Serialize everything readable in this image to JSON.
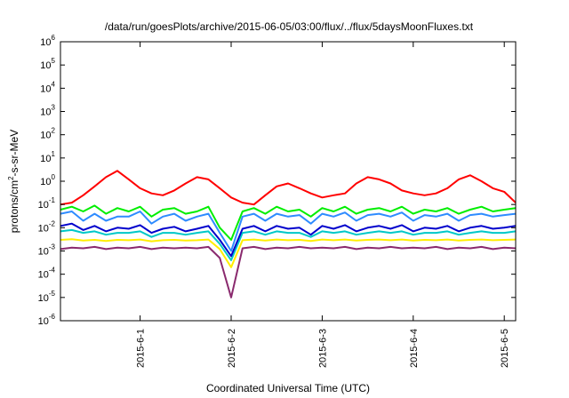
{
  "chart_data": {
    "type": "line",
    "title": "/data/run/goesPlots/archive/2015-06-05/03:00/flux/../flux/5daysMoonFluxes.txt",
    "xlabel": "Coordinated Universal Time (UTC)",
    "ylabel": {
      "prefix": "protons/cm",
      "sup": "2",
      "suffix": "-s-sr-MeV"
    },
    "y_scale": "log",
    "ylim": [
      1e-06,
      1000000
    ],
    "y_ticks": [
      {
        "value": 1e-06,
        "base": "10",
        "exp": "-6"
      },
      {
        "value": 1e-05,
        "base": "10",
        "exp": "-5"
      },
      {
        "value": 0.0001,
        "base": "10",
        "exp": "-4"
      },
      {
        "value": 0.001,
        "base": "10",
        "exp": "-3"
      },
      {
        "value": 0.01,
        "base": "10",
        "exp": "-2"
      },
      {
        "value": 0.1,
        "base": "10",
        "exp": "-1"
      },
      {
        "value": 1,
        "base": "10",
        "exp": "0"
      },
      {
        "value": 10,
        "base": "10",
        "exp": "1"
      },
      {
        "value": 100,
        "base": "10",
        "exp": "2"
      },
      {
        "value": 1000,
        "base": "10",
        "exp": "3"
      },
      {
        "value": 10000,
        "base": "10",
        "exp": "4"
      },
      {
        "value": 100000,
        "base": "10",
        "exp": "5"
      },
      {
        "value": 1000000,
        "base": "10",
        "exp": "6"
      }
    ],
    "xlim": [
      "2015-05-31T03:00",
      "2015-06-05T03:00"
    ],
    "x_ticks": [
      {
        "value": "2015-06-01T00:00",
        "label": "2015-6-1"
      },
      {
        "value": "2015-06-02T00:00",
        "label": "2015-6-2"
      },
      {
        "value": "2015-06-03T00:00",
        "label": "2015-6-3"
      },
      {
        "value": "2015-06-04T00:00",
        "label": "2015-6-4"
      },
      {
        "value": "2015-06-05T00:00",
        "label": "2015-6-5"
      }
    ],
    "grid": false,
    "legend": "none",
    "series": [
      {
        "color": "#ff0000",
        "x": [
          "2015-05-31T03:00",
          "2015-05-31T06:00",
          "2015-05-31T09:00",
          "2015-05-31T12:00",
          "2015-05-31T15:00",
          "2015-05-31T18:00",
          "2015-05-31T21:00",
          "2015-06-01T00:00",
          "2015-06-01T03:00",
          "2015-06-01T06:00",
          "2015-06-01T09:00",
          "2015-06-01T12:00",
          "2015-06-01T15:00",
          "2015-06-01T18:00",
          "2015-06-01T21:00",
          "2015-06-02T00:00",
          "2015-06-02T03:00",
          "2015-06-02T06:00",
          "2015-06-02T09:00",
          "2015-06-02T12:00",
          "2015-06-02T15:00",
          "2015-06-02T18:00",
          "2015-06-02T21:00",
          "2015-06-03T00:00",
          "2015-06-03T03:00",
          "2015-06-03T06:00",
          "2015-06-03T09:00",
          "2015-06-03T12:00",
          "2015-06-03T15:00",
          "2015-06-03T18:00",
          "2015-06-03T21:00",
          "2015-06-04T00:00",
          "2015-06-04T03:00",
          "2015-06-04T06:00",
          "2015-06-04T09:00",
          "2015-06-04T12:00",
          "2015-06-04T15:00",
          "2015-06-04T18:00",
          "2015-06-04T21:00",
          "2015-06-05T00:00",
          "2015-06-05T03:00"
        ],
        "values": [
          0.1,
          0.12,
          0.25,
          0.6,
          1.5,
          2.8,
          1.2,
          0.5,
          0.3,
          0.25,
          0.4,
          0.8,
          1.5,
          1.2,
          0.5,
          0.2,
          0.12,
          0.1,
          0.25,
          0.6,
          0.8,
          0.5,
          0.3,
          0.2,
          0.25,
          0.3,
          0.8,
          1.5,
          1.2,
          0.8,
          0.4,
          0.3,
          0.25,
          0.3,
          0.5,
          1.2,
          1.8,
          1.0,
          0.5,
          0.35,
          0.12
        ]
      },
      {
        "color": "#00ee00",
        "x": [
          "2015-05-31T03:00",
          "2015-05-31T06:00",
          "2015-05-31T09:00",
          "2015-05-31T12:00",
          "2015-05-31T15:00",
          "2015-05-31T18:00",
          "2015-05-31T21:00",
          "2015-06-01T00:00",
          "2015-06-01T03:00",
          "2015-06-01T06:00",
          "2015-06-01T09:00",
          "2015-06-01T12:00",
          "2015-06-01T15:00",
          "2015-06-01T18:00",
          "2015-06-01T21:00",
          "2015-06-02T00:00",
          "2015-06-02T03:00",
          "2015-06-02T06:00",
          "2015-06-02T09:00",
          "2015-06-02T12:00",
          "2015-06-02T15:00",
          "2015-06-02T18:00",
          "2015-06-02T21:00",
          "2015-06-03T00:00",
          "2015-06-03T03:00",
          "2015-06-03T06:00",
          "2015-06-03T09:00",
          "2015-06-03T12:00",
          "2015-06-03T15:00",
          "2015-06-03T18:00",
          "2015-06-03T21:00",
          "2015-06-04T00:00",
          "2015-06-04T03:00",
          "2015-06-04T06:00",
          "2015-06-04T09:00",
          "2015-06-04T12:00",
          "2015-06-04T15:00",
          "2015-06-04T18:00",
          "2015-06-04T21:00",
          "2015-06-05T00:00",
          "2015-06-05T03:00"
        ],
        "values": [
          0.06,
          0.08,
          0.05,
          0.09,
          0.04,
          0.07,
          0.05,
          0.08,
          0.03,
          0.06,
          0.07,
          0.04,
          0.05,
          0.08,
          0.01,
          0.003,
          0.05,
          0.07,
          0.04,
          0.08,
          0.05,
          0.06,
          0.03,
          0.07,
          0.05,
          0.08,
          0.04,
          0.06,
          0.07,
          0.05,
          0.08,
          0.04,
          0.06,
          0.05,
          0.07,
          0.04,
          0.06,
          0.08,
          0.05,
          0.06,
          0.07
        ]
      },
      {
        "color": "#2e8bff",
        "x": [
          "2015-05-31T03:00",
          "2015-05-31T06:00",
          "2015-05-31T09:00",
          "2015-05-31T12:00",
          "2015-05-31T15:00",
          "2015-05-31T18:00",
          "2015-05-31T21:00",
          "2015-06-01T00:00",
          "2015-06-01T03:00",
          "2015-06-01T06:00",
          "2015-06-01T09:00",
          "2015-06-01T12:00",
          "2015-06-01T15:00",
          "2015-06-01T18:00",
          "2015-06-01T21:00",
          "2015-06-02T00:00",
          "2015-06-02T03:00",
          "2015-06-02T06:00",
          "2015-06-02T09:00",
          "2015-06-02T12:00",
          "2015-06-02T15:00",
          "2015-06-02T18:00",
          "2015-06-02T21:00",
          "2015-06-03T00:00",
          "2015-06-03T03:00",
          "2015-06-03T06:00",
          "2015-06-03T09:00",
          "2015-06-03T12:00",
          "2015-06-03T15:00",
          "2015-06-03T18:00",
          "2015-06-03T21:00",
          "2015-06-04T00:00",
          "2015-06-04T03:00",
          "2015-06-04T06:00",
          "2015-06-04T09:00",
          "2015-06-04T12:00",
          "2015-06-04T15:00",
          "2015-06-04T18:00",
          "2015-06-04T21:00",
          "2015-06-05T00:00",
          "2015-06-05T03:00"
        ],
        "values": [
          0.04,
          0.05,
          0.02,
          0.04,
          0.02,
          0.03,
          0.03,
          0.05,
          0.015,
          0.03,
          0.04,
          0.02,
          0.03,
          0.04,
          0.006,
          0.001,
          0.03,
          0.04,
          0.02,
          0.04,
          0.03,
          0.035,
          0.015,
          0.04,
          0.03,
          0.045,
          0.02,
          0.035,
          0.04,
          0.03,
          0.045,
          0.02,
          0.035,
          0.03,
          0.04,
          0.02,
          0.035,
          0.04,
          0.03,
          0.035,
          0.04
        ]
      },
      {
        "color": "#0000cc",
        "x": [
          "2015-05-31T03:00",
          "2015-05-31T06:00",
          "2015-05-31T09:00",
          "2015-05-31T12:00",
          "2015-05-31T15:00",
          "2015-05-31T18:00",
          "2015-05-31T21:00",
          "2015-06-01T00:00",
          "2015-06-01T03:00",
          "2015-06-01T06:00",
          "2015-06-01T09:00",
          "2015-06-01T12:00",
          "2015-06-01T15:00",
          "2015-06-01T18:00",
          "2015-06-01T21:00",
          "2015-06-02T00:00",
          "2015-06-02T03:00",
          "2015-06-02T06:00",
          "2015-06-02T09:00",
          "2015-06-02T12:00",
          "2015-06-02T15:00",
          "2015-06-02T18:00",
          "2015-06-02T21:00",
          "2015-06-03T00:00",
          "2015-06-03T03:00",
          "2015-06-03T06:00",
          "2015-06-03T09:00",
          "2015-06-03T12:00",
          "2015-06-03T15:00",
          "2015-06-03T18:00",
          "2015-06-03T21:00",
          "2015-06-04T00:00",
          "2015-06-04T03:00",
          "2015-06-04T06:00",
          "2015-06-04T09:00",
          "2015-06-04T12:00",
          "2015-06-04T15:00",
          "2015-06-04T18:00",
          "2015-06-04T21:00",
          "2015-06-05T00:00",
          "2015-06-05T03:00"
        ],
        "values": [
          0.012,
          0.015,
          0.008,
          0.012,
          0.007,
          0.01,
          0.009,
          0.013,
          0.006,
          0.009,
          0.011,
          0.007,
          0.009,
          0.012,
          0.003,
          0.0006,
          0.009,
          0.012,
          0.007,
          0.012,
          0.009,
          0.01,
          0.005,
          0.012,
          0.009,
          0.013,
          0.007,
          0.01,
          0.012,
          0.009,
          0.013,
          0.007,
          0.01,
          0.009,
          0.012,
          0.007,
          0.01,
          0.012,
          0.009,
          0.01,
          0.012
        ]
      },
      {
        "color": "#00c8c8",
        "x": [
          "2015-05-31T03:00",
          "2015-05-31T06:00",
          "2015-05-31T09:00",
          "2015-05-31T12:00",
          "2015-05-31T15:00",
          "2015-05-31T18:00",
          "2015-05-31T21:00",
          "2015-06-01T00:00",
          "2015-06-01T03:00",
          "2015-06-01T06:00",
          "2015-06-01T09:00",
          "2015-06-01T12:00",
          "2015-06-01T15:00",
          "2015-06-01T18:00",
          "2015-06-01T21:00",
          "2015-06-02T00:00",
          "2015-06-02T03:00",
          "2015-06-02T06:00",
          "2015-06-02T09:00",
          "2015-06-02T12:00",
          "2015-06-02T15:00",
          "2015-06-02T18:00",
          "2015-06-02T21:00",
          "2015-06-03T00:00",
          "2015-06-03T03:00",
          "2015-06-03T06:00",
          "2015-06-03T09:00",
          "2015-06-03T12:00",
          "2015-06-03T15:00",
          "2015-06-03T18:00",
          "2015-06-03T21:00",
          "2015-06-04T00:00",
          "2015-06-04T03:00",
          "2015-06-04T06:00",
          "2015-06-04T09:00",
          "2015-06-04T12:00",
          "2015-06-04T15:00",
          "2015-06-04T18:00",
          "2015-06-04T21:00",
          "2015-06-05T00:00",
          "2015-06-05T03:00"
        ],
        "values": [
          0.007,
          0.008,
          0.006,
          0.007,
          0.005,
          0.006,
          0.006,
          0.007,
          0.004,
          0.006,
          0.006,
          0.005,
          0.006,
          0.007,
          0.002,
          0.0004,
          0.006,
          0.007,
          0.005,
          0.007,
          0.006,
          0.006,
          0.004,
          0.007,
          0.006,
          0.007,
          0.005,
          0.006,
          0.007,
          0.006,
          0.007,
          0.005,
          0.006,
          0.006,
          0.007,
          0.005,
          0.006,
          0.007,
          0.006,
          0.006,
          0.007
        ]
      },
      {
        "color": "#ffee00",
        "x": [
          "2015-05-31T03:00",
          "2015-05-31T06:00",
          "2015-05-31T09:00",
          "2015-05-31T12:00",
          "2015-05-31T15:00",
          "2015-05-31T18:00",
          "2015-05-31T21:00",
          "2015-06-01T00:00",
          "2015-06-01T03:00",
          "2015-06-01T06:00",
          "2015-06-01T09:00",
          "2015-06-01T12:00",
          "2015-06-01T15:00",
          "2015-06-01T18:00",
          "2015-06-01T21:00",
          "2015-06-02T00:00",
          "2015-06-02T03:00",
          "2015-06-02T06:00",
          "2015-06-02T09:00",
          "2015-06-02T12:00",
          "2015-06-02T15:00",
          "2015-06-02T18:00",
          "2015-06-02T21:00",
          "2015-06-03T00:00",
          "2015-06-03T03:00",
          "2015-06-03T06:00",
          "2015-06-03T09:00",
          "2015-06-03T12:00",
          "2015-06-03T15:00",
          "2015-06-03T18:00",
          "2015-06-03T21:00",
          "2015-06-04T00:00",
          "2015-06-04T03:00",
          "2015-06-04T06:00",
          "2015-06-04T09:00",
          "2015-06-04T12:00",
          "2015-06-04T15:00",
          "2015-06-04T18:00",
          "2015-06-04T21:00",
          "2015-06-05T00:00",
          "2015-06-05T03:00"
        ],
        "values": [
          0.003,
          0.0032,
          0.0028,
          0.003,
          0.0027,
          0.003,
          0.0029,
          0.0031,
          0.0026,
          0.0029,
          0.003,
          0.0028,
          0.0029,
          0.0031,
          0.0012,
          0.0002,
          0.0029,
          0.0031,
          0.0028,
          0.0031,
          0.0029,
          0.003,
          0.0027,
          0.0031,
          0.0029,
          0.0031,
          0.0028,
          0.003,
          0.0031,
          0.0029,
          0.0031,
          0.0028,
          0.003,
          0.0029,
          0.0031,
          0.0028,
          0.003,
          0.0031,
          0.0029,
          0.003,
          0.0031
        ]
      },
      {
        "color": "#8a2a6e",
        "x": [
          "2015-05-31T03:00",
          "2015-05-31T06:00",
          "2015-05-31T09:00",
          "2015-05-31T12:00",
          "2015-05-31T15:00",
          "2015-05-31T18:00",
          "2015-05-31T21:00",
          "2015-06-01T00:00",
          "2015-06-01T03:00",
          "2015-06-01T06:00",
          "2015-06-01T09:00",
          "2015-06-01T12:00",
          "2015-06-01T15:00",
          "2015-06-01T18:00",
          "2015-06-01T21:00",
          "2015-06-02T00:00",
          "2015-06-02T03:00",
          "2015-06-02T06:00",
          "2015-06-02T09:00",
          "2015-06-02T12:00",
          "2015-06-02T15:00",
          "2015-06-02T18:00",
          "2015-06-02T21:00",
          "2015-06-03T00:00",
          "2015-06-03T03:00",
          "2015-06-03T06:00",
          "2015-06-03T09:00",
          "2015-06-03T12:00",
          "2015-06-03T15:00",
          "2015-06-03T18:00",
          "2015-06-03T21:00",
          "2015-06-04T00:00",
          "2015-06-04T03:00",
          "2015-06-04T06:00",
          "2015-06-04T09:00",
          "2015-06-04T12:00",
          "2015-06-04T15:00",
          "2015-06-04T18:00",
          "2015-06-04T21:00",
          "2015-06-05T00:00",
          "2015-06-05T03:00"
        ],
        "values": [
          0.0012,
          0.0014,
          0.0013,
          0.0015,
          0.0012,
          0.0014,
          0.0013,
          0.0015,
          0.0012,
          0.0014,
          0.0013,
          0.0014,
          0.0013,
          0.0015,
          0.0005,
          1e-05,
          0.0013,
          0.0015,
          0.0012,
          0.0014,
          0.0013,
          0.0015,
          0.0013,
          0.0014,
          0.0013,
          0.0015,
          0.0012,
          0.0014,
          0.0013,
          0.0015,
          0.0013,
          0.0014,
          0.0013,
          0.0015,
          0.0012,
          0.0014,
          0.0013,
          0.0015,
          0.0012,
          0.0014,
          0.0013
        ]
      }
    ]
  }
}
